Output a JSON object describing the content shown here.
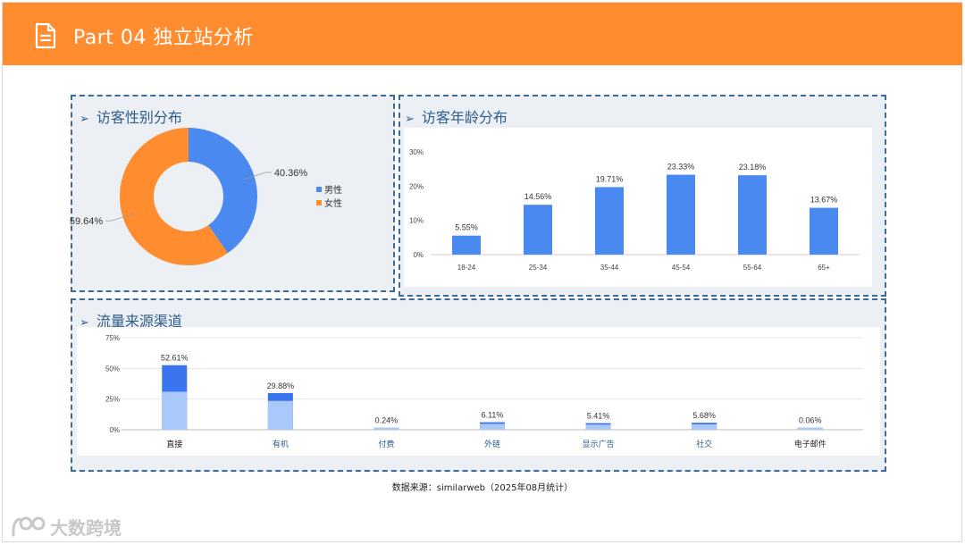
{
  "header": {
    "title": "Part 04 独立站分析",
    "icon": "document-icon"
  },
  "gender_panel": {
    "title": "访客性别分布"
  },
  "age_panel": {
    "title": "访客年龄分布"
  },
  "traffic_panel": {
    "title": "流量来源渠道"
  },
  "source_note": "数据来源：similarweb（2025年08月统计）",
  "logo_text": "大数跨境",
  "colors": {
    "orange": "#ff8c2e",
    "blue": "#4a89f0",
    "dark_blue": "#3b74ef",
    "light_blue": "#aac9fb",
    "border": "#3d6b97"
  },
  "chart_data": [
    {
      "type": "pie",
      "variant": "donut",
      "title": "访客性别分布",
      "slices": [
        {
          "name": "男性",
          "value": 40.36,
          "label": "40.36%",
          "color": "#4a89f0"
        },
        {
          "name": "女性",
          "value": 59.64,
          "label": "59.64%",
          "color": "#ff8c2e"
        }
      ],
      "legend": "right"
    },
    {
      "type": "bar",
      "title": "访客年龄分布",
      "categories": [
        "18-24",
        "25-34",
        "35-44",
        "45-54",
        "55-64",
        "65+"
      ],
      "values": [
        5.55,
        14.56,
        19.71,
        23.33,
        23.18,
        13.67
      ],
      "labels": [
        "5.55%",
        "14.56%",
        "19.71%",
        "23.33%",
        "23.18%",
        "13.67%"
      ],
      "yticks": [
        "0%",
        "10%",
        "20%",
        "30%"
      ],
      "ylim": [
        0,
        30
      ],
      "grid": false
    },
    {
      "type": "bar",
      "stacked": true,
      "title": "流量来源渠道",
      "categories": [
        "直接",
        "有机",
        "付费",
        "外链",
        "显示广告",
        "社交",
        "电子邮件"
      ],
      "totals": [
        52.61,
        29.88,
        0.24,
        6.11,
        5.41,
        5.68,
        0.06
      ],
      "labels": [
        "52.61%",
        "29.88%",
        "0.24%",
        "6.11%",
        "5.41%",
        "5.68%",
        "0.06%"
      ],
      "lower_values": [
        31.0,
        23.5,
        0.24,
        4.8,
        4.2,
        4.4,
        0.06
      ],
      "yticks": [
        "0%",
        "25%",
        "50%",
        "75%"
      ],
      "ylim": [
        0,
        75
      ],
      "grid": true
    }
  ]
}
